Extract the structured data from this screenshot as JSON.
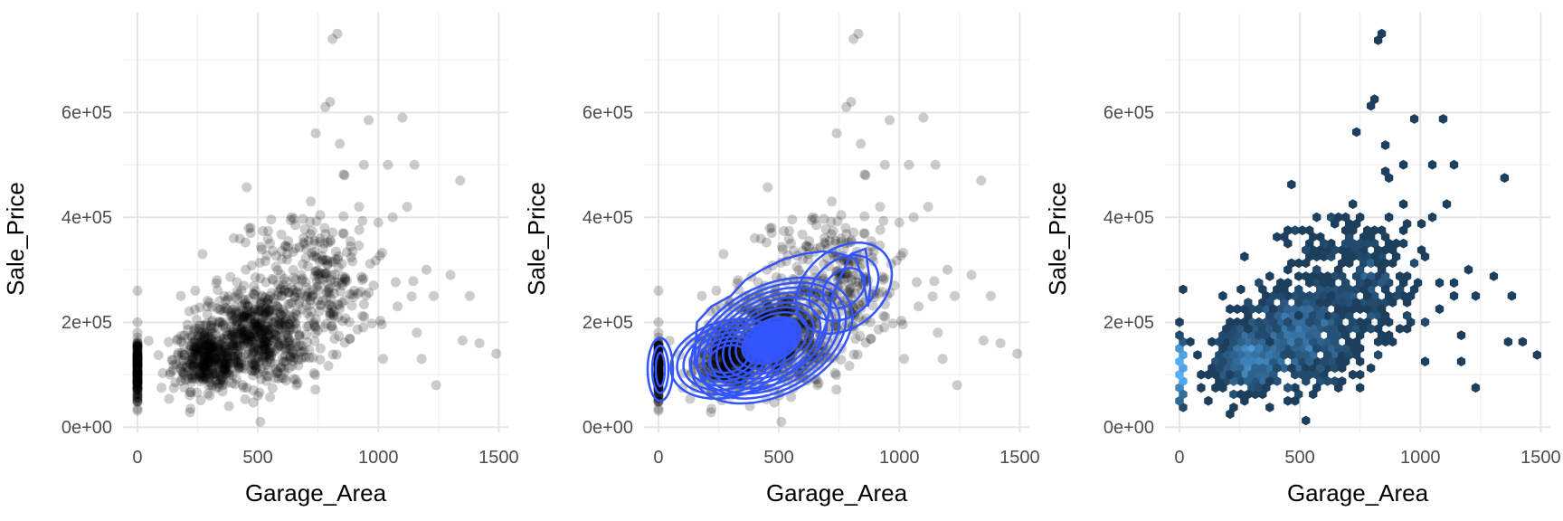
{
  "chart_data": [
    {
      "type": "scatter",
      "xlabel": "Garage_Area",
      "ylabel": "Sale_Price",
      "xlim": [
        -60,
        1540
      ],
      "ylim": [
        -10000,
        790000
      ],
      "xticks": [
        0,
        500,
        1000,
        1500
      ],
      "xtick_labels": [
        "0",
        "500",
        "1000",
        "1500"
      ],
      "yticks": [
        0,
        200000,
        400000,
        600000
      ],
      "ytick_labels": [
        "0e+00",
        "2e+05",
        "4e+05",
        "6e+05"
      ],
      "grid": true,
      "point_color": "#000000",
      "point_alpha": 0.2,
      "series": [
        {
          "points": [
            [
              0,
              35000
            ],
            [
              0,
              55000
            ],
            [
              0,
              70000
            ],
            [
              0,
              85000
            ],
            [
              0,
              95000
            ],
            [
              0,
              105000
            ],
            [
              0,
              115000
            ],
            [
              0,
              125000
            ],
            [
              0,
              135000
            ],
            [
              0,
              145000
            ],
            [
              0,
              160000
            ],
            [
              0,
              180000
            ],
            [
              0,
              200000
            ],
            [
              0,
              260000
            ],
            [
              100,
              75000
            ],
            [
              160,
              120000
            ],
            [
              180,
              250000
            ],
            [
              200,
              90000
            ],
            [
              220,
              35000
            ],
            [
              240,
              260000
            ],
            [
              260,
              150000
            ],
            [
              270,
              330000
            ],
            [
              290,
              230000
            ],
            [
              300,
              60000
            ],
            [
              330,
              280000
            ],
            [
              360,
              250000
            ],
            [
              380,
              40000
            ],
            [
              400,
              360000
            ],
            [
              420,
              110000
            ],
            [
              450,
              300000
            ],
            [
              470,
              380000
            ],
            [
              500,
              60000
            ],
            [
              510,
              10000
            ],
            [
              520,
              210000
            ],
            [
              550,
              350000
            ],
            [
              580,
              230000
            ],
            [
              600,
              320000
            ],
            [
              620,
              150000
            ],
            [
              640,
              400000
            ],
            [
              660,
              80000
            ],
            [
              680,
              290000
            ],
            [
              700,
              340000
            ],
            [
              720,
              430000
            ],
            [
              740,
              560000
            ],
            [
              760,
              150000
            ],
            [
              780,
              610000
            ],
            [
              800,
              620000
            ],
            [
              810,
              740000
            ],
            [
              830,
              750000
            ],
            [
              840,
              540000
            ],
            [
              860,
              480000
            ],
            [
              880,
              200000
            ],
            [
              900,
              260000
            ],
            [
              920,
              420000
            ],
            [
              940,
              500000
            ],
            [
              960,
              585000
            ],
            [
              980,
              270000
            ],
            [
              1000,
              390000
            ],
            [
              1020,
              130000
            ],
            [
              1040,
              500000
            ],
            [
              1060,
              400000
            ],
            [
              1080,
              230000
            ],
            [
              1100,
              590000
            ],
            [
              1120,
              420000
            ],
            [
              1150,
              500000
            ],
            [
              1160,
              180000
            ],
            [
              1180,
              130000
            ],
            [
              1200,
              300000
            ],
            [
              1230,
              250000
            ],
            [
              1240,
              80000
            ],
            [
              1300,
              290000
            ],
            [
              1340,
              470000
            ],
            [
              1350,
              165000
            ],
            [
              1380,
              250000
            ],
            [
              1420,
              160000
            ],
            [
              1490,
              140000
            ]
          ]
        }
      ]
    },
    {
      "type": "scatter",
      "xlabel": "Garage_Area",
      "ylabel": "Sale_Price",
      "xlim": [
        -60,
        1540
      ],
      "ylim": [
        -10000,
        790000
      ],
      "xticks": [
        0,
        500,
        1000,
        1500
      ],
      "xtick_labels": [
        "0",
        "500",
        "1000",
        "1500"
      ],
      "yticks": [
        0,
        200000,
        400000,
        600000
      ],
      "ytick_labels": [
        "0e+00",
        "2e+05",
        "4e+05",
        "6e+05"
      ],
      "grid": true,
      "point_color": "#000000",
      "point_alpha": 0.2,
      "density_contour_color": "#3355ff",
      "density_modes": [
        {
          "x": 0,
          "y": 115000
        },
        {
          "x": 290,
          "y": 130000
        },
        {
          "x": 480,
          "y": 165000
        },
        {
          "x": 560,
          "y": 190000
        }
      ]
    },
    {
      "type": "heatmap",
      "subtype": "hexbin",
      "xlabel": "Garage_Area",
      "ylabel": "Sale_Price",
      "xlim": [
        -60,
        1540
      ],
      "ylim": [
        -10000,
        790000
      ],
      "xticks": [
        0,
        500,
        1000,
        1500
      ],
      "xtick_labels": [
        "0",
        "500",
        "1000",
        "1500"
      ],
      "yticks": [
        0,
        200000,
        400000,
        600000
      ],
      "ytick_labels": [
        "0e+00",
        "2e+05",
        "4e+05",
        "6e+05"
      ],
      "grid": true,
      "low_color": "#132b43",
      "high_color": "#56b1f7",
      "density_peaks": [
        {
          "x": 0,
          "y": 115000
        },
        {
          "x": 290,
          "y": 130000
        },
        {
          "x": 480,
          "y": 165000
        },
        {
          "x": 560,
          "y": 190000
        }
      ]
    }
  ]
}
